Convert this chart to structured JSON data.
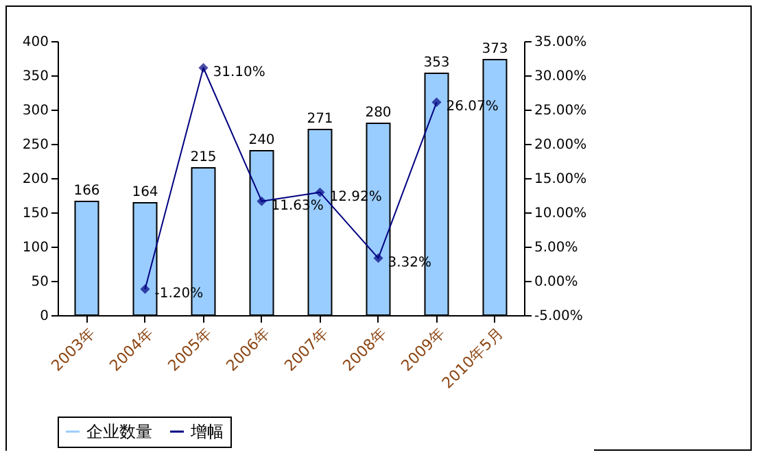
{
  "chart_data": {
    "type": "bar",
    "categories": [
      "2003年",
      "2004年",
      "2005年",
      "2006年",
      "2007年",
      "2008年",
      "2009年",
      "2010年5月"
    ],
    "series": [
      {
        "name": "企业数量",
        "type": "bar",
        "color": "#99ccff",
        "values": [
          166,
          164,
          215,
          240,
          271,
          280,
          353,
          373
        ],
        "value_labels": [
          "166",
          "164",
          "215",
          "240",
          "271",
          "280",
          "353",
          "373"
        ]
      },
      {
        "name": "增幅",
        "type": "line",
        "axis": "y2",
        "color": "#000080",
        "values": [
          null,
          -1.2,
          31.1,
          11.63,
          12.92,
          3.32,
          26.07,
          null
        ],
        "value_labels": [
          null,
          "-1.20%",
          "31.10%",
          "11.63%",
          "12.92%",
          "3.32%",
          "26.07%",
          null
        ]
      }
    ],
    "ylim": [
      0,
      400
    ],
    "yticks": [
      0,
      50,
      100,
      150,
      200,
      250,
      300,
      350,
      400
    ],
    "y2lim": [
      -5,
      35
    ],
    "y2ticks": [
      {
        "value": -5,
        "label": "-5.00%"
      },
      {
        "value": 0,
        "label": "0.00%"
      },
      {
        "value": 5,
        "label": "5.00%"
      },
      {
        "value": 10,
        "label": "10.00%"
      },
      {
        "value": 15,
        "label": "15.00%"
      },
      {
        "value": 20,
        "label": "20.00%"
      },
      {
        "value": 25,
        "label": "25.00%"
      },
      {
        "value": 30,
        "label": "30.00%"
      },
      {
        "value": 35,
        "label": "35.00%"
      }
    ],
    "grid": false,
    "legend": "bottom",
    "marker": "diamond",
    "line_style": "solid"
  }
}
